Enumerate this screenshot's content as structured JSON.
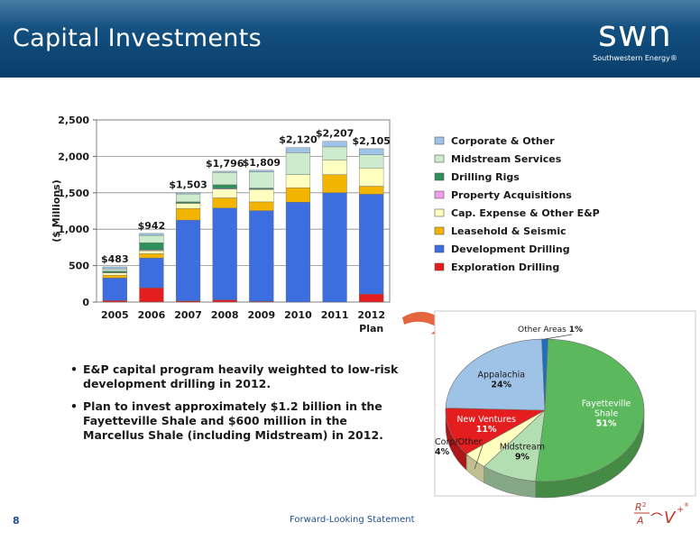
{
  "header": {
    "title": "Capital Investments"
  },
  "logo": {
    "mark": "swn",
    "subtitle": "Southwestern Energy®"
  },
  "colors": {
    "corporate_other": "#9ec3e6",
    "midstream_services": "#cdeccd",
    "drilling_rigs": "#2f8f5a",
    "property_acquisitions": "#ee9ee8",
    "cap_expense_other_ep": "#ffffbf",
    "leasehold_seismic": "#f3b400",
    "development_drilling": "#3c6ee0",
    "exploration_drilling": "#e41e1e"
  },
  "chart_data": [
    {
      "type": "bar",
      "stacked": true,
      "ylabel": "($ Millions)",
      "ylim": [
        0,
        2500
      ],
      "yticks": [
        "0",
        "500",
        "1,000",
        "1,500",
        "2,000",
        "2,500"
      ],
      "ytick_values": [
        0,
        500,
        1000,
        1500,
        2000,
        2500
      ],
      "categories": [
        "2005",
        "2006",
        "2007",
        "2008",
        "2009",
        "2010",
        "2011",
        "2012"
      ],
      "category_sublabels": [
        "",
        "",
        "",
        "",
        "",
        "",
        "",
        "Plan"
      ],
      "totals": [
        "$483",
        "$942",
        "$1,503",
        "$1,796",
        "$1,809",
        "$2,120",
        "$2,207",
        "$2,105"
      ],
      "grid": true,
      "legend": "right",
      "series": [
        {
          "name": "Exploration Drilling",
          "values": [
            20,
            195,
            15,
            30,
            10,
            0,
            0,
            110
          ]
        },
        {
          "name": "Development Drilling",
          "values": [
            310,
            410,
            1110,
            1260,
            1245,
            1370,
            1500,
            1370
          ]
        },
        {
          "name": "Leasehold & Seismic",
          "values": [
            40,
            60,
            160,
            140,
            120,
            200,
            250,
            110
          ]
        },
        {
          "name": "Cap. Expense & Other E&P",
          "values": [
            30,
            40,
            70,
            120,
            170,
            180,
            200,
            250
          ]
        },
        {
          "name": "Property Acquisitions",
          "values": [
            5,
            10,
            5,
            10,
            5,
            0,
            0,
            0
          ]
        },
        {
          "name": "Drilling Rigs",
          "values": [
            20,
            100,
            15,
            50,
            15,
            0,
            0,
            0
          ]
        },
        {
          "name": "Midstream Services",
          "values": [
            30,
            100,
            110,
            170,
            220,
            300,
            180,
            180
          ]
        },
        {
          "name": "Corporate & Other",
          "values": [
            28,
            27,
            18,
            16,
            24,
            70,
            77,
            85
          ]
        }
      ],
      "legend_entries": [
        "Corporate & Other",
        "Midstream Services",
        "Drilling Rigs",
        "Property Acquisitions",
        "Cap. Expense & Other E&P",
        "Leasehold & Seismic",
        "Development Drilling",
        "Exploration Drilling"
      ]
    },
    {
      "type": "pie",
      "slices": [
        {
          "label": "Fayetteville Shale",
          "lines": [
            "Fayetteville",
            "Shale"
          ],
          "value_label": "51%",
          "value": 51,
          "color": "#5cb85c"
        },
        {
          "label": "Midstream",
          "lines": [
            "Midstream"
          ],
          "value_label": "9%",
          "value": 9,
          "color": "#b2deb2"
        },
        {
          "label": "Corp/Other",
          "lines": [
            "Corp/Other"
          ],
          "value_label": "4%",
          "value": 4,
          "color": "#ffffbf"
        },
        {
          "label": "New Ventures",
          "lines": [
            "New Ventures"
          ],
          "value_label": "11%",
          "value": 11,
          "color": "#e41e1e"
        },
        {
          "label": "Appalachia",
          "lines": [
            "Appalachia"
          ],
          "value_label": "24%",
          "value": 24,
          "color": "#9ec3e6"
        },
        {
          "label": "Other Areas",
          "lines": [
            "Other Areas"
          ],
          "value_label": "1%",
          "value": 1,
          "color": "#1e6fbf"
        }
      ]
    }
  ],
  "bullets": [
    "E&P capital program heavily weighted to low-risk development drilling in 2012.",
    "Plan to invest approximately $1.2 billion in the Fayetteville Shale and $600 million in the Marcellus Shale (including Midstream) in 2012."
  ],
  "footer": {
    "page_number": "8",
    "link_text": "Forward-Looking Statement",
    "logo_icon": "r2-av-plus-logo"
  }
}
